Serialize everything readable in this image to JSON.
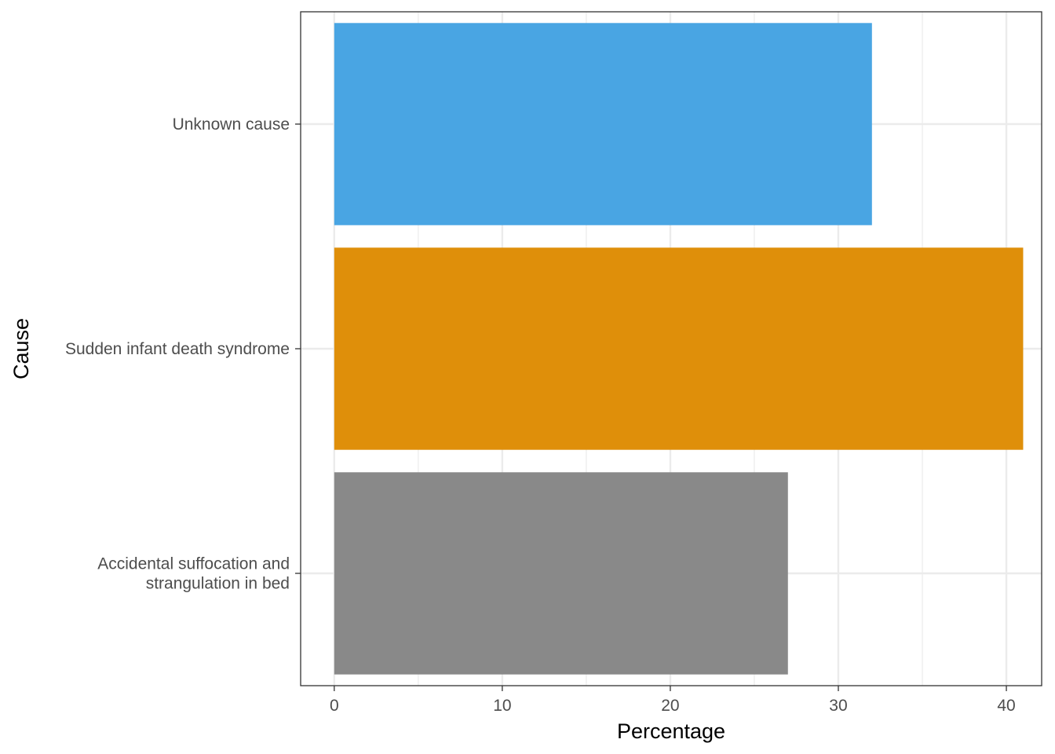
{
  "chart_data": {
    "type": "bar",
    "orientation": "horizontal",
    "categories": [
      "Accidental suffocation and strangulation in bed",
      "Sudden infant death syndrome",
      "Unknown cause"
    ],
    "category_label_lines": [
      [
        "Accidental suffocation and",
        "strangulation in bed"
      ],
      [
        "Sudden infant death syndrome"
      ],
      [
        "Unknown cause"
      ]
    ],
    "values": [
      27,
      41,
      32
    ],
    "colors": [
      "#898989",
      "#df8f0a",
      "#49a5e3"
    ],
    "xlabel": "Percentage",
    "ylabel": "Cause",
    "xlim": [
      -2,
      42.1
    ],
    "xticks": [
      0,
      10,
      20,
      30,
      40
    ],
    "grid": true,
    "legend": "none"
  }
}
